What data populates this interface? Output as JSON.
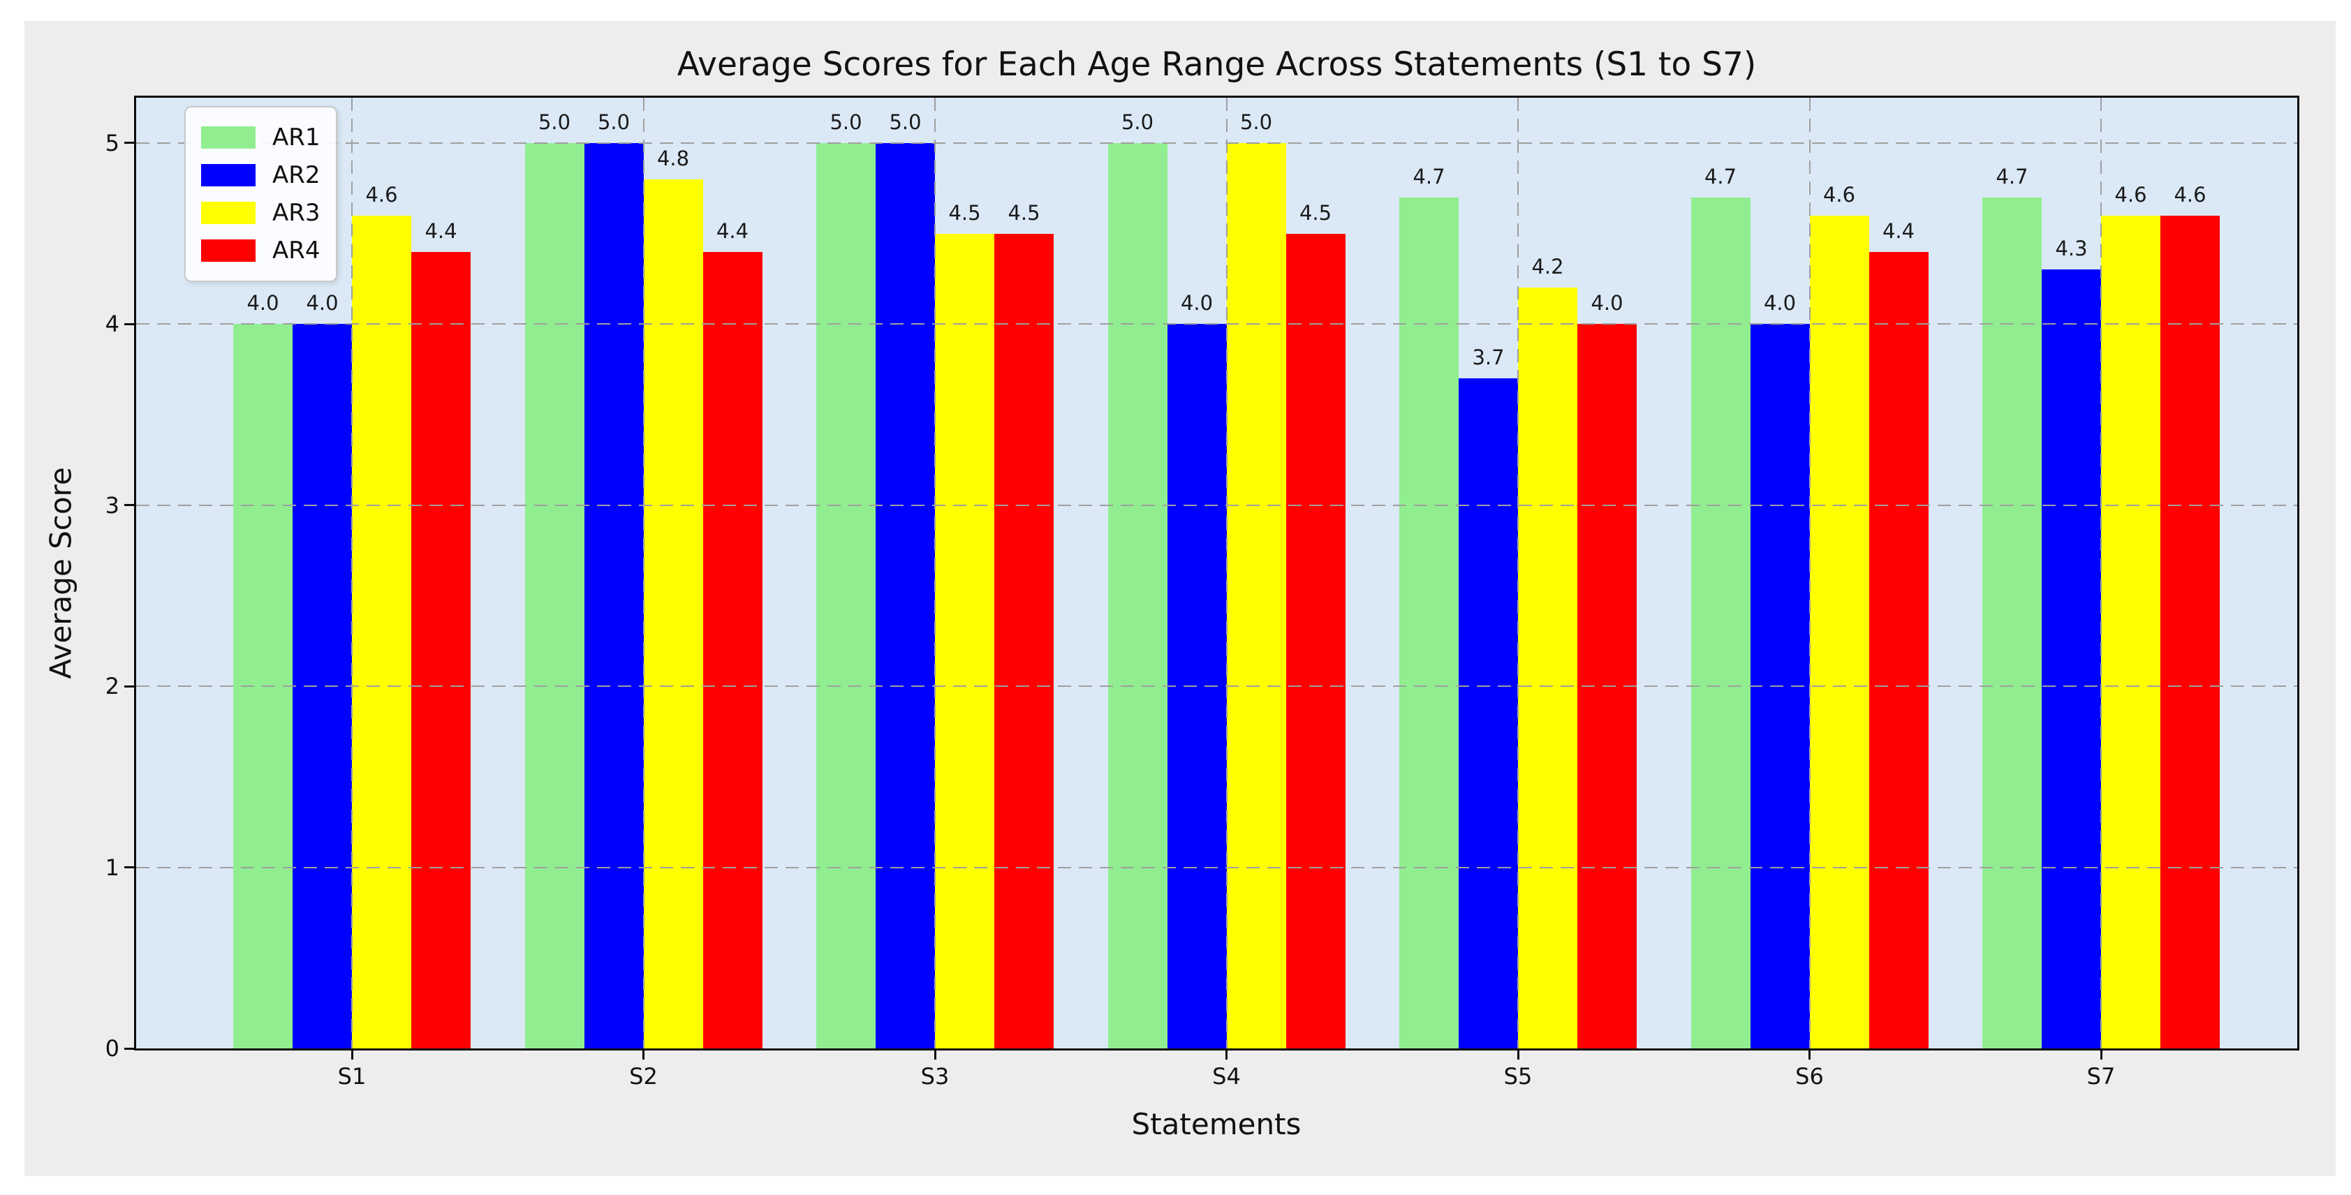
{
  "page": {
    "background": "#ffffff"
  },
  "figure": {
    "background": "#ededed"
  },
  "chart_data": {
    "type": "bar",
    "title": "Average Scores for Each Age Range Across Statements (S1 to S7)",
    "xlabel": "Statements",
    "ylabel": "Average Score",
    "categories": [
      "S1",
      "S2",
      "S3",
      "S4",
      "S5",
      "S6",
      "S7"
    ],
    "series": [
      {
        "name": "AR1",
        "color": "#90ee90",
        "values": [
          4.0,
          5.0,
          5.0,
          5.0,
          4.7,
          4.7,
          4.7
        ]
      },
      {
        "name": "AR2",
        "color": "#0000ff",
        "values": [
          4.0,
          5.0,
          5.0,
          4.0,
          3.7,
          4.0,
          4.3
        ]
      },
      {
        "name": "AR3",
        "color": "#ffff00",
        "values": [
          4.6,
          4.8,
          4.5,
          5.0,
          4.2,
          4.6,
          4.6
        ]
      },
      {
        "name": "AR4",
        "color": "#ff0000",
        "values": [
          4.4,
          4.4,
          4.5,
          4.5,
          4.0,
          4.4,
          4.6
        ]
      }
    ],
    "bar_value_labels": [
      [
        "4.0",
        "5.0",
        "5.0",
        "5.0",
        "4.7",
        "4.7",
        "4.7"
      ],
      [
        "4.0",
        "5.0",
        "5.0",
        "4.0",
        "3.7",
        "4.0",
        "4.3"
      ],
      [
        "4.6",
        "4.8",
        "4.5",
        "5.0",
        "4.2",
        "4.6",
        "4.6"
      ],
      [
        "4.4",
        "4.4",
        "4.5",
        "4.5",
        "4.0",
        "4.4",
        "4.6"
      ]
    ],
    "ylim": [
      0,
      5.25
    ],
    "yticks": [
      "0",
      "1",
      "2",
      "3",
      "4",
      "5"
    ],
    "grid": {
      "show": true,
      "style": "dashed",
      "color": "#9f9f9f"
    },
    "legend": {
      "position": "upper-left",
      "entries": [
        "AR1",
        "AR2",
        "AR3",
        "AR4"
      ]
    },
    "colors": {
      "figure_bg": "#ededed",
      "axes_bg": "#dbe9f6",
      "spine": "#0c0c0c",
      "text": "#111111"
    }
  }
}
